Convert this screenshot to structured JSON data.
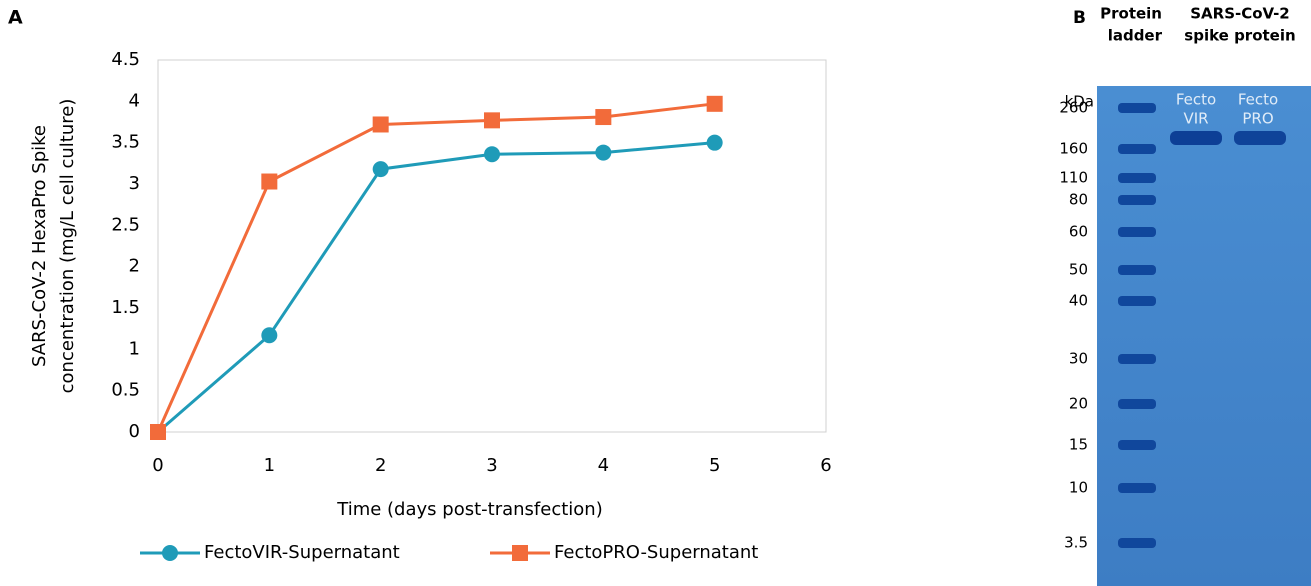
{
  "chart_data": {
    "type": "line",
    "panel_label": "A",
    "ylabel": [
      "SARS-CoV-2 HexaPro Spike",
      "concentration (mg/L cell culture)"
    ],
    "xlabel": "Time (days post-transfection)",
    "x": [
      0,
      1,
      2,
      3,
      4,
      5
    ],
    "series": [
      {
        "name": "FectoVIR-Supernatant",
        "color": "#1f9bb8",
        "marker": "circle",
        "values": [
          0,
          1.17,
          3.18,
          3.36,
          3.38,
          3.5
        ]
      },
      {
        "name": "FectoPRO-Supernatant",
        "color": "#f26b3a",
        "marker": "square",
        "values": [
          0,
          3.03,
          3.72,
          3.77,
          3.81,
          3.97
        ]
      }
    ],
    "xlim": [
      0,
      6
    ],
    "xticks": [
      0,
      1,
      2,
      3,
      4,
      5,
      6
    ],
    "ylim": [
      0,
      4.5
    ],
    "yticks": [
      0,
      0.5,
      1,
      1.5,
      2,
      2.5,
      3,
      3.5,
      4,
      4.5
    ],
    "grid": false,
    "legend": "bottom"
  },
  "gel": {
    "panel_label": "B",
    "headers": [
      [
        "Protein",
        "ladder"
      ],
      [
        "SARS-CoV-2",
        "spike protein"
      ]
    ],
    "unit": "kDa",
    "lanes": [
      [
        "Fecto",
        "VIR"
      ],
      [
        "Fecto",
        "PRO"
      ]
    ],
    "ladder": [
      "260",
      "160",
      "110",
      "80",
      "60",
      "50",
      "40",
      "30",
      "20",
      "15",
      "10",
      "3.5"
    ]
  }
}
